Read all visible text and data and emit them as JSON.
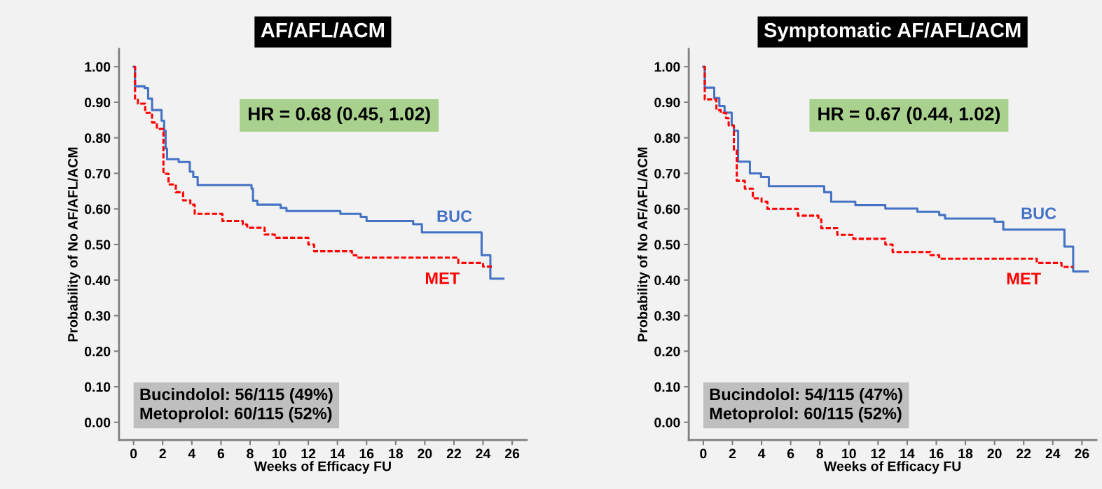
{
  "chart_data": [
    {
      "type": "step",
      "title": "AF/AFL/ACM",
      "xlabel": "Weeks of Efficacy FU",
      "ylabel": "Probability of No AF/AFL/ACM",
      "xlim": [
        -1,
        27
      ],
      "ylim": [
        -0.05,
        1.05
      ],
      "xticks": [
        0,
        2,
        4,
        6,
        8,
        10,
        12,
        14,
        16,
        18,
        20,
        22,
        24,
        26
      ],
      "yticks": [
        {
          "value": 0,
          "label": "0.00"
        },
        {
          "value": 0.1,
          "label": "0.10"
        },
        {
          "value": 0.2,
          "label": "0.20"
        },
        {
          "value": 0.3,
          "label": "0.30"
        },
        {
          "value": 0.4,
          "label": "0.40"
        },
        {
          "value": 0.5,
          "label": "0.50"
        },
        {
          "value": 0.6,
          "label": "0.60"
        },
        {
          "value": 0.7,
          "label": "0.70"
        },
        {
          "value": 0.8,
          "label": "0.80"
        },
        {
          "value": 0.9,
          "label": "0.90"
        },
        {
          "value": 1,
          "label": "1.00"
        }
      ],
      "grid": false,
      "legend": false,
      "annotations": [
        "HR = 0.68 (0.45, 1.02)",
        "Bucindolol: 56/115 (49%)\nMetoprolol: 60/115 (52%)"
      ],
      "series": [
        {
          "name": "BUC",
          "color": "#4472c4",
          "line_style": "solid",
          "x": [
            0,
            0.1,
            0.76,
            1.0,
            1.27,
            1.92,
            2.1,
            2.2,
            2.3,
            3.1,
            3.86,
            4.1,
            4.4,
            7.57,
            8.1,
            8.2,
            8.5,
            10.1,
            10.5,
            14.2,
            15.6,
            16.0,
            19.2,
            19.8,
            23.9,
            24.5,
            25.4
          ],
          "values": [
            1.0,
            0.945,
            0.94,
            0.91,
            0.878,
            0.848,
            0.82,
            0.77,
            0.74,
            0.732,
            0.705,
            0.69,
            0.667,
            0.667,
            0.657,
            0.623,
            0.612,
            0.603,
            0.594,
            0.586,
            0.578,
            0.566,
            0.557,
            0.534,
            0.47,
            0.404,
            0.404
          ]
        },
        {
          "name": "MET",
          "color": "#ff0000",
          "line_style": "dashed",
          "x": [
            0,
            0.1,
            0.3,
            0.8,
            1.27,
            1.6,
            2.05,
            2.4,
            2.9,
            3.4,
            3.9,
            4.2,
            6.1,
            7.5,
            7.8,
            9.0,
            9.7,
            12.0,
            12.4,
            15.0,
            15.3,
            22.3,
            24.0,
            24.6
          ],
          "values": [
            1.0,
            0.907,
            0.896,
            0.87,
            0.843,
            0.825,
            0.699,
            0.669,
            0.647,
            0.624,
            0.612,
            0.586,
            0.566,
            0.556,
            0.547,
            0.528,
            0.519,
            0.5,
            0.481,
            0.47,
            0.463,
            0.448,
            0.438,
            0.438
          ]
        }
      ]
    },
    {
      "type": "step",
      "title": "Symptomatic AF/AFL/ACM",
      "xlabel": "Weeks of Efficacy FU",
      "ylabel": "Probability of No AF/AFL/ACM",
      "xlim": [
        -1,
        27
      ],
      "ylim": [
        -0.05,
        1.05
      ],
      "xticks": [
        0,
        2,
        4,
        6,
        8,
        10,
        12,
        14,
        16,
        18,
        20,
        22,
        24,
        26
      ],
      "yticks": [
        {
          "value": 0,
          "label": "0.00"
        },
        {
          "value": 0.1,
          "label": "0.10"
        },
        {
          "value": 0.2,
          "label": "0.20"
        },
        {
          "value": 0.3,
          "label": "0.30"
        },
        {
          "value": 0.4,
          "label": "0.40"
        },
        {
          "value": 0.5,
          "label": "0.50"
        },
        {
          "value": 0.6,
          "label": "0.60"
        },
        {
          "value": 0.7,
          "label": "0.70"
        },
        {
          "value": 0.8,
          "label": "0.80"
        },
        {
          "value": 0.9,
          "label": "0.90"
        },
        {
          "value": 1,
          "label": "1.00"
        }
      ],
      "grid": false,
      "legend": false,
      "annotations": [
        "HR = 0.67 (0.44, 1.02)",
        "Bucindolol: 54/115 (47%)\nMetoprolol: 60/115 (52%)"
      ],
      "series": [
        {
          "name": "BUC",
          "color": "#4472c4",
          "line_style": "solid",
          "x": [
            0,
            0.1,
            0.75,
            1.1,
            1.46,
            1.95,
            2.1,
            2.39,
            3.2,
            3.96,
            4.5,
            8.3,
            8.78,
            10.44,
            12.5,
            14.7,
            16.2,
            16.6,
            20.0,
            20.6,
            24.8,
            25.4,
            26.4
          ],
          "values": [
            1.0,
            0.941,
            0.912,
            0.889,
            0.871,
            0.835,
            0.82,
            0.733,
            0.7,
            0.69,
            0.664,
            0.647,
            0.62,
            0.611,
            0.601,
            0.592,
            0.583,
            0.573,
            0.564,
            0.542,
            0.494,
            0.424,
            0.424
          ]
        },
        {
          "name": "MET",
          "color": "#ff0000",
          "line_style": "dashed",
          "x": [
            0,
            0.1,
            0.9,
            1.2,
            1.57,
            1.74,
            2.1,
            2.3,
            2.85,
            3.4,
            4.0,
            4.4,
            6.5,
            7.9,
            8.1,
            9.2,
            10.3,
            12.5,
            13.0,
            15.6,
            16.2,
            22.9,
            24.6,
            25.4
          ],
          "values": [
            1.0,
            0.908,
            0.878,
            0.87,
            0.855,
            0.835,
            0.764,
            0.679,
            0.657,
            0.63,
            0.62,
            0.6,
            0.581,
            0.571,
            0.546,
            0.527,
            0.516,
            0.5,
            0.479,
            0.47,
            0.46,
            0.448,
            0.437,
            0.437
          ]
        }
      ]
    }
  ]
}
